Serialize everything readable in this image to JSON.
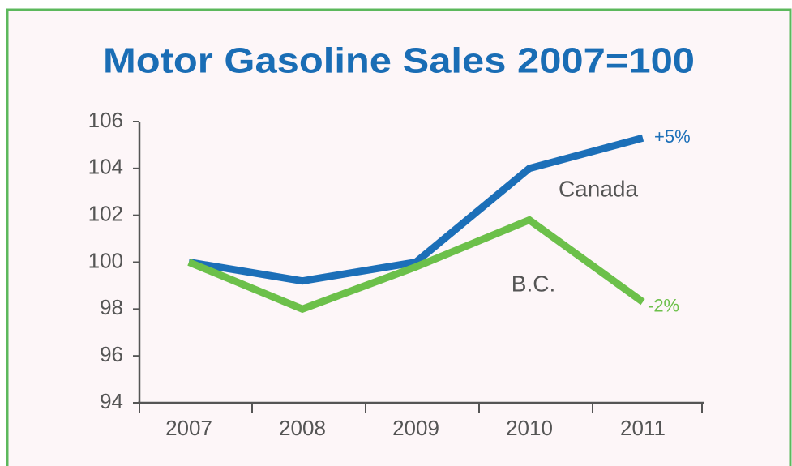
{
  "chart_data": {
    "type": "line",
    "title": "Motor Gasoline Sales 2007=100",
    "categories": [
      "2007",
      "2008",
      "2009",
      "2010",
      "2011"
    ],
    "series": [
      {
        "name": "Canada",
        "color": "#1c6fb8",
        "values": [
          100,
          99.2,
          100,
          104,
          105.3
        ]
      },
      {
        "name": "B.C.",
        "color": "#6cc04a",
        "values": [
          100,
          98,
          99.8,
          101.8,
          98.3
        ]
      }
    ],
    "annotations": [
      {
        "text": "+5%"
      },
      {
        "text": "-2%"
      }
    ],
    "ylim": [
      94,
      106
    ],
    "yticks": [
      94,
      96,
      98,
      100,
      102,
      104,
      106
    ],
    "grid": false
  }
}
